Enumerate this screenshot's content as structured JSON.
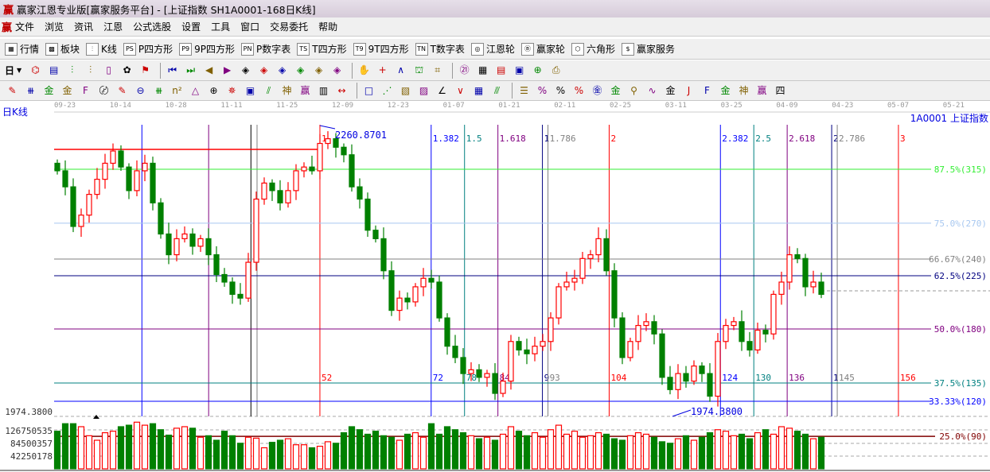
{
  "window": {
    "title": "赢家江恩专业版[赢家服务平台] - [上证指数  SH1A0001-168日K线]",
    "logo": "赢"
  },
  "menu": [
    "文件",
    "浏览",
    "资讯",
    "江恩",
    "公式选股",
    "设置",
    "工具",
    "窗口",
    "交易委托",
    "帮助"
  ],
  "toolbar1": [
    {
      "label": "行情",
      "icon": "table-icon",
      "glyph": "▦"
    },
    {
      "label": "板块",
      "icon": "blocks-icon",
      "glyph": "▩"
    },
    {
      "label": "K线",
      "icon": "candlestick-icon",
      "glyph": "⫶"
    },
    {
      "label": "P四方形",
      "icon": "ps-icon",
      "glyph": "PS"
    },
    {
      "label": "9P四方形",
      "icon": "p9-icon",
      "glyph": "P9"
    },
    {
      "label": "P数字表",
      "icon": "pn-icon",
      "glyph": "PN"
    },
    {
      "label": "T四方形",
      "icon": "ts-icon",
      "glyph": "TS"
    },
    {
      "label": "9T四方形",
      "icon": "t9-icon",
      "glyph": "T9"
    },
    {
      "label": "T数字表",
      "icon": "tn-icon",
      "glyph": "TN"
    },
    {
      "label": "江恩轮",
      "icon": "gann-wheel-icon",
      "glyph": "◎"
    },
    {
      "label": "赢家轮",
      "icon": "big-wheel-icon",
      "glyph": "Ⓑ"
    },
    {
      "label": "六角形",
      "icon": "hexagon-icon",
      "glyph": "⬡"
    },
    {
      "label": "赢家服务",
      "icon": "dollar-icon",
      "glyph": "$"
    }
  ],
  "toolbar2": {
    "period": "日",
    "icons": [
      {
        "n": "chart-type-icon",
        "g": "⌬"
      },
      {
        "n": "notes-icon",
        "g": "▤"
      },
      {
        "n": "kline3-icon",
        "g": "⫶"
      },
      {
        "n": "kline9-icon",
        "g": "⫶"
      },
      {
        "n": "candle-type-icon",
        "g": "▯"
      },
      {
        "n": "pattern-icon",
        "g": "✿"
      },
      {
        "n": "flag-icon",
        "g": "⚑"
      },
      {
        "n": "first-icon",
        "g": "⏮"
      },
      {
        "n": "last-icon",
        "g": "⏭"
      },
      {
        "n": "prev-icon",
        "g": "◀"
      },
      {
        "n": "next-icon",
        "g": "▶"
      },
      {
        "n": "move-left-icon",
        "g": "◈"
      },
      {
        "n": "move-right-icon",
        "g": "◈"
      },
      {
        "n": "zoom-in-icon",
        "g": "◈"
      },
      {
        "n": "zoom-out-icon",
        "g": "◈"
      },
      {
        "n": "shrink-icon",
        "g": "◈"
      },
      {
        "n": "expand-icon",
        "g": "◈"
      },
      {
        "n": "hand-icon",
        "g": "✋"
      },
      {
        "n": "crosshair-icon",
        "g": "+"
      },
      {
        "n": "line-icon",
        "g": "∧"
      },
      {
        "n": "text-icon",
        "g": "⛫"
      },
      {
        "n": "map-icon",
        "g": "⌗"
      },
      {
        "n": "calendar-icon",
        "g": "㉑"
      },
      {
        "n": "calculator-icon",
        "g": "▦"
      },
      {
        "n": "report-icon",
        "g": "▤"
      },
      {
        "n": "save-icon",
        "g": "▣"
      },
      {
        "n": "network-icon",
        "g": "⊕"
      },
      {
        "n": "print-icon",
        "g": "⎙"
      }
    ]
  },
  "toolbar3": [
    {
      "n": "pen-icon",
      "g": "✎"
    },
    {
      "n": "grid-icon",
      "g": "⧻"
    },
    {
      "n": "gold-icon",
      "g": "金"
    },
    {
      "n": "gold2-icon",
      "g": "金"
    },
    {
      "n": "fib-icon",
      "g": "F"
    },
    {
      "n": "spiral-icon",
      "g": "〄"
    },
    {
      "n": "pen2-icon",
      "g": "✎"
    },
    {
      "n": "circle-icon",
      "g": "⊖"
    },
    {
      "n": "lines-icon",
      "g": "⧻"
    },
    {
      "n": "n2-icon",
      "g": "n²"
    },
    {
      "n": "triangle-icon",
      "g": "△"
    },
    {
      "n": "target-icon",
      "g": "⊕"
    },
    {
      "n": "star-icon",
      "g": "✵"
    },
    {
      "n": "square-icon",
      "g": "▣"
    },
    {
      "n": "slash-icon",
      "g": "⫽"
    },
    {
      "n": "shen-icon",
      "g": "神"
    },
    {
      "n": "ying-icon",
      "g": "赢"
    },
    {
      "n": "ruler-icon",
      "g": "▥"
    },
    {
      "n": "width-icon",
      "g": "↔"
    },
    {
      "n": "box-icon",
      "g": "□"
    },
    {
      "n": "fan-icon",
      "g": "⋰"
    },
    {
      "n": "box-fan-icon",
      "g": "▧"
    },
    {
      "n": "box-fan2-icon",
      "g": "▨"
    },
    {
      "n": "angle-icon",
      "g": "∠"
    },
    {
      "n": "zigzag-icon",
      "g": "∨"
    },
    {
      "n": "grid2-icon",
      "g": "▦"
    },
    {
      "n": "parallel-icon",
      "g": "⫻"
    },
    {
      "n": "levels-icon",
      "g": "☰"
    },
    {
      "n": "percent-fan-icon",
      "g": "%"
    },
    {
      "n": "percent-icon",
      "g": "%"
    },
    {
      "n": "percent-lines-icon",
      "g": "%"
    },
    {
      "n": "gold-circle-icon",
      "g": "㊎"
    },
    {
      "n": "gold-lines-icon",
      "g": "金"
    },
    {
      "n": "rocket-icon",
      "g": "⚲"
    },
    {
      "n": "wave-icon",
      "g": "∿"
    },
    {
      "n": "gold-box-icon",
      "g": "金"
    },
    {
      "n": "j-fan-icon",
      "g": "J"
    },
    {
      "n": "f-fan-icon",
      "g": "F"
    },
    {
      "n": "gold-fan-icon",
      "g": "金"
    },
    {
      "n": "shen-fan-icon",
      "g": "神"
    },
    {
      "n": "ying-fan-icon",
      "g": "赢"
    },
    {
      "n": "si-fan-icon",
      "g": "四"
    }
  ],
  "chart": {
    "period_label": "日K线",
    "symbol": "1A0001  上证指数",
    "dates": [
      "09-23",
      "10-14",
      "10-28",
      "11-11",
      "11-25",
      "12-09",
      "12-23",
      "01-07",
      "01-21",
      "02-11",
      "02-25",
      "03-11",
      "03-25",
      "04-09",
      "04-23",
      "05-07",
      "05-21"
    ],
    "high_label": "2260.8701",
    "low_label": "1974.3800",
    "price_axis_label": "1974.3800",
    "volume_axis": [
      "126750535",
      "84500357",
      "42250178"
    ],
    "colors": {
      "up": "#ff0000",
      "down": "#008000"
    },
    "closes": [
      2223,
      2206,
      2164,
      2176,
      2198,
      2214,
      2231,
      2244,
      2227,
      2202,
      2223,
      2231,
      2189,
      2156,
      2134,
      2151,
      2156,
      2143,
      2151,
      2134,
      2113,
      2105,
      2092,
      2088,
      2126,
      2193,
      2210,
      2202,
      2189,
      2202,
      2223,
      2227,
      2223,
      2252,
      2257,
      2248,
      2240,
      2206,
      2193,
      2160,
      2151,
      2117,
      2075,
      2088,
      2084,
      2100,
      2109,
      2105,
      2067,
      2037,
      2025,
      2008,
      2012,
      2004,
      2008,
      1987,
      2000,
      2042,
      2033,
      2029,
      2037,
      2042,
      2067,
      2100,
      2105,
      2109,
      2130,
      2134,
      2151,
      2117,
      2067,
      2025,
      2042,
      2059,
      2063,
      2050,
      2004,
      1991,
      2008,
      2000,
      2016,
      2008,
      1984,
      2042,
      2059,
      2063,
      2042,
      2033,
      2054,
      2050,
      2092,
      2105,
      2134,
      2130,
      2100,
      2105,
      2092
    ],
    "volumes_m": [
      125,
      150,
      150,
      140,
      110,
      95,
      120,
      125,
      140,
      145,
      155,
      145,
      150,
      130,
      112,
      135,
      140,
      135,
      105,
      110,
      95,
      125,
      110,
      85,
      105,
      102,
      70,
      88,
      95,
      100,
      80,
      80,
      70,
      75,
      90,
      85,
      120,
      140,
      130,
      115,
      125,
      110,
      105,
      95,
      115,
      120,
      105,
      150,
      115,
      140,
      130,
      120,
      110,
      100,
      105,
      95,
      115,
      140,
      125,
      110,
      120,
      105,
      130,
      145,
      115,
      125,
      105,
      110,
      120,
      115,
      100,
      95,
      110,
      120,
      115,
      105,
      90,
      85,
      100,
      110,
      95,
      105,
      120,
      130,
      125,
      110,
      115,
      100,
      120,
      130,
      115,
      140,
      135,
      125,
      115,
      100,
      105
    ],
    "price_levels": [
      {
        "label": "87.5%(315)",
        "price": 2224.6,
        "color": "#33ee33"
      },
      {
        "label": "75.0%(270)",
        "price": 2167.4,
        "color": "#a8c8f0"
      },
      {
        "label": "66.67%(240)",
        "price": 2129.4,
        "color": "#808080"
      },
      {
        "label": "62.5%(225)",
        "price": 2111.7,
        "color": "#000080"
      },
      {
        "label": "50.0%(180)",
        "price": 2055.3,
        "color": "#800080"
      },
      {
        "label": "37.5%(135)",
        "price": 1998.0,
        "color": "#008080"
      },
      {
        "label": "33.33%(120)",
        "price": 1978.6,
        "color": "#0000ff"
      }
    ],
    "volume_level": {
      "label": "25.0%(90)",
      "color": "#800000",
      "volume_m": 108
    },
    "red_level_price": 2245.7,
    "current_price": 2095.7,
    "time_lines": [
      {
        "bar": 20,
        "color": "#0000ff",
        "top": "",
        "bottom": ""
      },
      {
        "bar": 32,
        "color": "#800080",
        "top": "",
        "bottom": ""
      },
      {
        "bar": 39.6,
        "color": "#000000",
        "top": "",
        "bottom": ""
      },
      {
        "bar": 40.7,
        "color": "#808080",
        "top": "",
        "bottom": ""
      },
      {
        "bar": 52,
        "color": "#ff0000",
        "top": "1",
        "bottom": "52"
      },
      {
        "bar": 72,
        "color": "#0000ff",
        "top": "1.382",
        "bottom": "72"
      },
      {
        "bar": 78,
        "color": "#008080",
        "top": "1.5",
        "bottom": "78"
      },
      {
        "bar": 84,
        "color": "#800080",
        "top": "1.618",
        "bottom": "84"
      },
      {
        "bar": 92,
        "color": "#000080",
        "top": "1",
        "bottom": "9"
      },
      {
        "bar": 93,
        "color": "#808080",
        "top": "1.786",
        "bottom": "93"
      },
      {
        "bar": 104,
        "color": "#ff0000",
        "top": "2",
        "bottom": "104"
      },
      {
        "bar": 124,
        "color": "#0000ff",
        "top": "2.382",
        "bottom": "124"
      },
      {
        "bar": 130,
        "color": "#008080",
        "top": "2.5",
        "bottom": "130"
      },
      {
        "bar": 136,
        "color": "#800080",
        "top": "2.618",
        "bottom": "136"
      },
      {
        "bar": 144,
        "color": "#000080",
        "top": "2",
        "bottom": "1"
      },
      {
        "bar": 145,
        "color": "#808080",
        "top": "2.786",
        "bottom": "145"
      },
      {
        "bar": 156,
        "color": "#ff0000",
        "top": "3",
        "bottom": "156"
      }
    ]
  }
}
